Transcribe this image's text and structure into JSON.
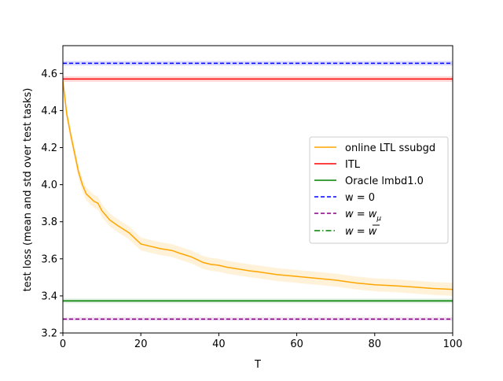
{
  "chart_data": {
    "type": "line",
    "title": "",
    "xlabel": "T",
    "ylabel": "test loss (mean and std over test tasks)",
    "xlim": [
      0,
      100
    ],
    "ylim": [
      3.2,
      4.75
    ],
    "x_ticks": [
      0,
      20,
      40,
      60,
      80,
      100
    ],
    "y_ticks": [
      3.2,
      3.4,
      3.6,
      3.8,
      4.0,
      4.2,
      4.4,
      4.6
    ],
    "y_tick_labels": [
      "3.2",
      "3.4",
      "3.6",
      "3.8",
      "4.0",
      "4.2",
      "4.4",
      "4.6"
    ],
    "x_tick_labels": [
      "0",
      "20",
      "40",
      "60",
      "80",
      "100"
    ],
    "grid": false,
    "legend_position": "center-right",
    "series": [
      {
        "name": "online LTL ssubgd",
        "color": "#ffa500",
        "style": "solid",
        "x": [
          0,
          1,
          2,
          3,
          4,
          5,
          6,
          7,
          8,
          9,
          10,
          12,
          14,
          17,
          20,
          22,
          25,
          28,
          30,
          33,
          36,
          38,
          40,
          42,
          45,
          48,
          50,
          55,
          60,
          65,
          70,
          75,
          80,
          85,
          90,
          95,
          100
        ],
        "y": [
          4.56,
          4.38,
          4.27,
          4.17,
          4.07,
          4.0,
          3.95,
          3.93,
          3.91,
          3.9,
          3.86,
          3.81,
          3.78,
          3.74,
          3.68,
          3.67,
          3.655,
          3.645,
          3.63,
          3.61,
          3.58,
          3.57,
          3.565,
          3.555,
          3.545,
          3.535,
          3.53,
          3.515,
          3.505,
          3.495,
          3.485,
          3.47,
          3.46,
          3.455,
          3.448,
          3.44,
          3.435
        ],
        "std": 0.035
      },
      {
        "name": "ITL",
        "color": "#ff0000",
        "style": "solid",
        "y_const": 4.57,
        "std": 0.015
      },
      {
        "name": "Oracle lmbd1.0",
        "color": "#008000",
        "style": "solid",
        "y_const": 3.373,
        "std": 0.012
      },
      {
        "name": "w = 0",
        "color": "#0000ff",
        "style": "dashed",
        "y_const": 4.655,
        "std": 0.012
      },
      {
        "name": "w = w_μ",
        "color": "#800080",
        "style": "dashed",
        "y_const": 3.275,
        "std": 0.008
      },
      {
        "name": "w = w̄",
        "color": "#008000",
        "style": "dashdot",
        "y_const": null
      }
    ]
  },
  "legend": {
    "entries": [
      {
        "label": "online LTL ssubgd",
        "color": "#ffa500",
        "style": "solid"
      },
      {
        "label": "ITL",
        "color": "#ff0000",
        "style": "solid"
      },
      {
        "label": "Oracle lmbd1.0",
        "color": "#008000",
        "style": "solid"
      },
      {
        "label": "w = 0",
        "color": "#0000ff",
        "style": "dashed"
      },
      {
        "label_main": "w = w",
        "label_sub": "μ",
        "color": "#800080",
        "style": "dashed"
      },
      {
        "label_main": "w = ",
        "label_bar": "w",
        "color": "#008000",
        "style": "dashdot"
      }
    ]
  }
}
